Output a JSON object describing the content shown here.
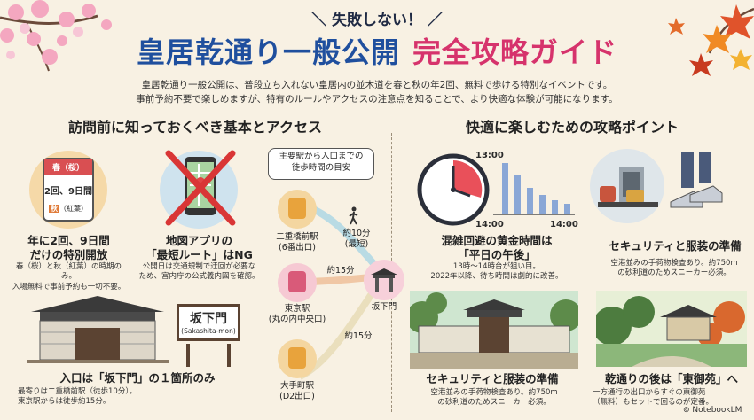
{
  "header": {
    "subtitle": "＼ 失敗しない！ ／",
    "title_main": "皇居乾通り一般公開",
    "title_accent": "完全攻略ガイド",
    "intro_line1": "皇居乾通り一般公開は、普段立ち入れない皇居内の並木道を春と秋の年2回、無料で歩ける特別なイベントです。",
    "intro_line2": "事前予約不要で楽しめますが、特有のルールやアクセスの注意点を知ることで、より快適な体験が可能になります。"
  },
  "left": {
    "heading": "訪問前に知っておくべき基本とアクセス",
    "calendar": {
      "spring": "春（桜）",
      "dates": "2回、9日間",
      "autumn_tag": "秋",
      "autumn_rest": "（紅葉）"
    },
    "card1": {
      "title_line1": "年に2回、9日間",
      "title_line2": "だけの特別開放",
      "desc_line1": "春（桜）と秋（紅葉）の時期のみ。",
      "desc_line2": "入場無料で事前予約も一切不要。"
    },
    "card2": {
      "title_line1": "地図アプリの",
      "title_line2": "「最短ルート」はNG",
      "desc_line1": "公開日は交通規制で迂回が必要な",
      "desc_line2": "ため、宮内庁の公式義内図を確認。"
    },
    "sign": {
      "name": "坂下門",
      "reading": "(Sakashita-mon)"
    },
    "card3": {
      "title": "入口は「坂下門」の１箇所のみ",
      "desc_line1": "最寄りは二重橋前駅（徒歩10分）。",
      "desc_line2": "東京駅からは徒歩約15分。"
    }
  },
  "access": {
    "bubble_line1": "主要駅から入口までの",
    "bubble_line2": "徒歩時間の目安",
    "stations": [
      {
        "name": "二重橋前駅",
        "sub": "(6番出口)",
        "color": "#e8a33c"
      },
      {
        "name": "東京駅",
        "sub": "(丸の内中央口)",
        "color": "#d95a79"
      },
      {
        "name": "大手町駅",
        "sub": "(D2出口)",
        "color": "#e8a33c"
      }
    ],
    "times": [
      "約10分",
      "(最短)",
      "約15分",
      "約15分"
    ],
    "gate_label": "坂下門"
  },
  "right": {
    "heading": "快適に楽しむための攻略ポイント",
    "chart_labels": {
      "top": "13:00",
      "left": "14:00",
      "right": "14:00"
    },
    "card1": {
      "title_line1": "混雑回避の黄金時間は",
      "title_line2": "「平日の午後」",
      "desc_line1": "13時〜14時台が狙い目。",
      "desc_line2": "2022年以降、待ち時間は劇的に改善。"
    },
    "card2": {
      "title": "セキュリティと服装の準備",
      "desc_line1": "空港並みの手荷物検査あり。約750m",
      "desc_line2": "の砂利道のためスニーカー必須。"
    },
    "card3": {
      "title": "セキュリティと服装の準備",
      "desc_line1": "空港並みの手荷物検査あり。約750m",
      "desc_line2": "の砂利道のためスニーカー必須。"
    },
    "card4": {
      "title": "乾通りの後は「東御苑」へ",
      "desc_line1": "一方通行の出口からすぐの東御苑",
      "desc_line2": "（無料）もセットで回るのが定番。"
    }
  },
  "footer": {
    "brand": "NotebookLM"
  },
  "colors": {
    "title_blue": "#1f4f9e",
    "title_pink": "#d6336c",
    "background": "#f8f1e3",
    "route_line": "#f0c7a5"
  }
}
